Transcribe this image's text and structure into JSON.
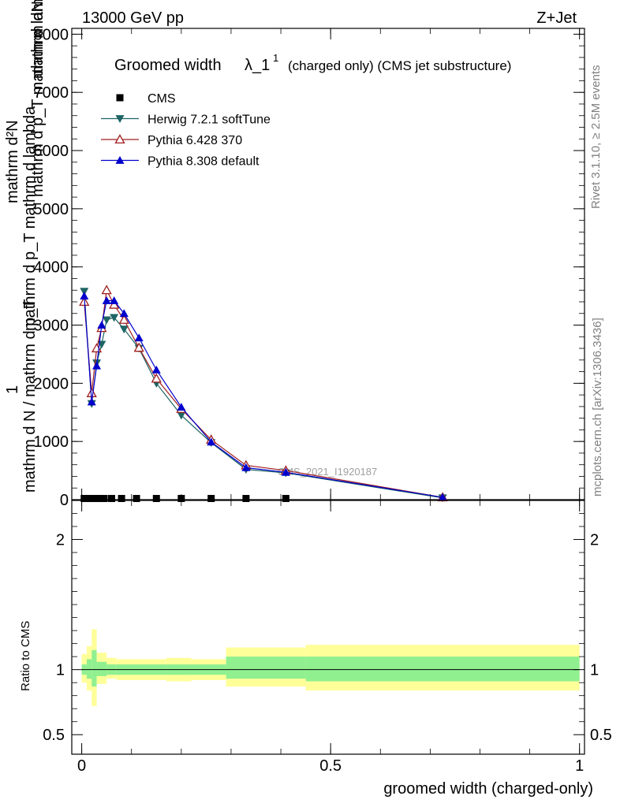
{
  "header": {
    "energy_label": "13000 GeV pp",
    "process_label": "Z+Jet"
  },
  "side_labels": {
    "rivet": "Rivet 3.1.10, ≥ 2.5M events",
    "mcplots": "mcplots.cern.ch [arXiv:1306.3436]"
  },
  "chart_data": [
    {
      "type": "line",
      "panel": "main",
      "title_main": "Groomed width",
      "title_lambda": "λ_1",
      "title_sup": "1",
      "title_suffix": "(charged only) (CMS jet substructure)",
      "watermark": "CMS_2021_I1920187",
      "ylabel_numerator_1": "1",
      "ylabel_denominator": "mathrm d N / mathrm d p_T",
      "ylabel_numerator_2": "mathrm d²N",
      "ylabel_denominator_2": "mathrm d p_T mathrm d lambda",
      "ylabel_top_fragment": "mathrm dN",
      "ylabel_mid_fragment": "mathrm d p_T mathrm d lambda",
      "ylim": [
        0,
        8100
      ],
      "y_ticks": [
        {
          "value": 0,
          "label": "0"
        },
        {
          "value": 1000,
          "label": "1000"
        },
        {
          "value": 2000,
          "label": "2000"
        },
        {
          "value": 3000,
          "label": "3000"
        },
        {
          "value": 4000,
          "label": "4000"
        },
        {
          "value": 5000,
          "label": "5000"
        },
        {
          "value": 6000,
          "label": "6000"
        },
        {
          "value": 7000,
          "label": "7000"
        },
        {
          "value": 8000,
          "label": "8000"
        }
      ],
      "xlim": [
        -0.02,
        1.01
      ],
      "legend_position": "top-left",
      "series": [
        {
          "name": "CMS",
          "marker": "square",
          "color": "#000000",
          "x": [
            0.005,
            0.015,
            0.025,
            0.035,
            0.045,
            0.06,
            0.08,
            0.11,
            0.15,
            0.2,
            0.26,
            0.33,
            0.41
          ],
          "y": [
            20,
            20,
            20,
            20,
            20,
            20,
            20,
            20,
            20,
            20,
            20,
            20,
            20
          ]
        },
        {
          "name": "Herwig 7.2.1 softTune",
          "marker": "triangle-down",
          "color": "#1e6464",
          "x": [
            0.005,
            0.02,
            0.03,
            0.04,
            0.05,
            0.065,
            0.085,
            0.115,
            0.15,
            0.2,
            0.26,
            0.33,
            0.41,
            0.725
          ],
          "y": [
            3580,
            1650,
            2350,
            2670,
            3090,
            3130,
            2930,
            2600,
            2000,
            1450,
            980,
            520,
            460,
            30
          ]
        },
        {
          "name": "Pythia 6.428 370",
          "marker": "triangle-up-open",
          "color": "#a01e1e",
          "x": [
            0.005,
            0.02,
            0.03,
            0.04,
            0.05,
            0.065,
            0.085,
            0.115,
            0.15,
            0.2,
            0.26,
            0.33,
            0.41,
            0.725
          ],
          "y": [
            3400,
            1830,
            2600,
            2950,
            3600,
            3350,
            3090,
            2610,
            2080,
            1560,
            1030,
            590,
            500,
            40
          ]
        },
        {
          "name": "Pythia 8.308 default",
          "marker": "triangle-up",
          "color": "#0000cc",
          "x": [
            0.005,
            0.02,
            0.03,
            0.04,
            0.05,
            0.065,
            0.085,
            0.115,
            0.15,
            0.2,
            0.26,
            0.33,
            0.41,
            0.725
          ],
          "y": [
            3500,
            1680,
            2300,
            3000,
            3420,
            3420,
            3200,
            2780,
            2230,
            1590,
            990,
            550,
            470,
            40
          ]
        }
      ]
    },
    {
      "type": "area",
      "panel": "ratio",
      "ylabel": "Ratio to CMS",
      "xlabel": "groomed width (charged-only)",
      "ylim": [
        0.35,
        2.3
      ],
      "xlim": [
        -0.02,
        1.01
      ],
      "y_ticks": [
        {
          "value": 0.5,
          "label": "0.5"
        },
        {
          "value": 1,
          "label": "1"
        },
        {
          "value": 2,
          "label": "2"
        }
      ],
      "x_ticks": [
        {
          "value": 0,
          "label": "0"
        },
        {
          "value": 0.5,
          "label": "0.5"
        },
        {
          "value": 1,
          "label": "1"
        }
      ],
      "bands": {
        "inner_color": "#90f090",
        "outer_color": "#ffff99",
        "bins": [
          {
            "lo": 0.0,
            "hi": 0.01,
            "inner": [
              0.96,
              1.04
            ],
            "outer": [
              0.9,
              1.12
            ]
          },
          {
            "lo": 0.01,
            "hi": 0.02,
            "inner": [
              0.93,
              1.08
            ],
            "outer": [
              0.84,
              1.18
            ]
          },
          {
            "lo": 0.02,
            "hi": 0.03,
            "inner": [
              0.87,
              1.15
            ],
            "outer": [
              0.72,
              1.31
            ]
          },
          {
            "lo": 0.03,
            "hi": 0.05,
            "inner": [
              0.95,
              1.06
            ],
            "outer": [
              0.89,
              1.13
            ]
          },
          {
            "lo": 0.05,
            "hi": 0.07,
            "inner": [
              0.96,
              1.04
            ],
            "outer": [
              0.93,
              1.09
            ]
          },
          {
            "lo": 0.07,
            "hi": 0.17,
            "inner": [
              0.96,
              1.04
            ],
            "outer": [
              0.92,
              1.08
            ]
          },
          {
            "lo": 0.17,
            "hi": 0.22,
            "inner": [
              0.96,
              1.04
            ],
            "outer": [
              0.91,
              1.09
            ]
          },
          {
            "lo": 0.22,
            "hi": 0.29,
            "inner": [
              0.96,
              1.04
            ],
            "outer": [
              0.92,
              1.08
            ]
          },
          {
            "lo": 0.29,
            "hi": 0.45,
            "inner": [
              0.93,
              1.1
            ],
            "outer": [
              0.87,
              1.17
            ]
          },
          {
            "lo": 0.45,
            "hi": 1.0,
            "inner": [
              0.91,
              1.1
            ],
            "outer": [
              0.84,
              1.19
            ]
          }
        ]
      },
      "reference_line": 1
    }
  ]
}
